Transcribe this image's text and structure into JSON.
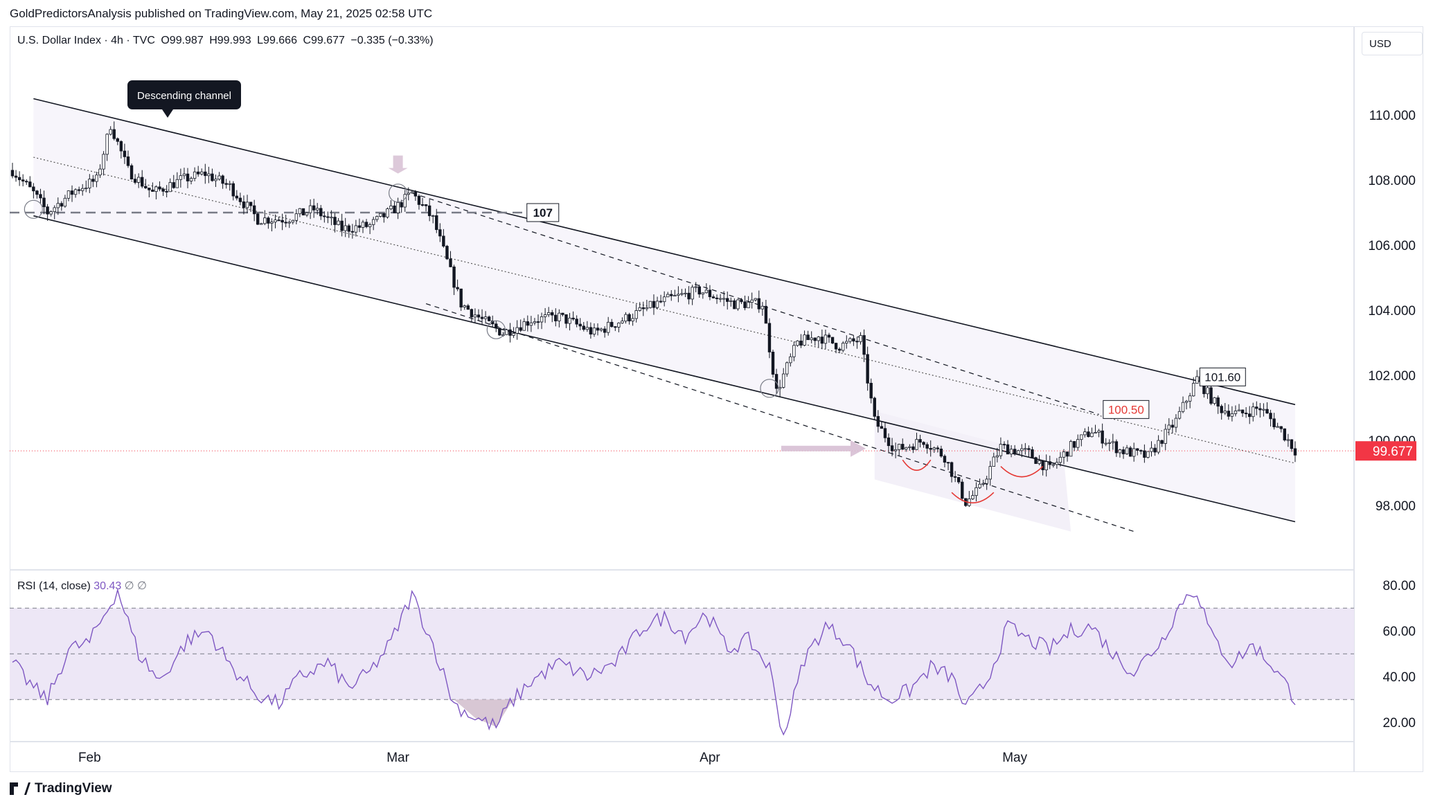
{
  "header": {
    "published_by": "GoldPredictorsAnalysis published on TradingView.com, May 21, 2025 02:58 UTC"
  },
  "legend": {
    "symbol": "U.S. Dollar Index · 4h · TVC",
    "open": "O99.987",
    "high": "H99.993",
    "low": "L99.666",
    "close": "C99.677",
    "change": "−0.335 (−0.33%)"
  },
  "currency_button": "USD",
  "rsi_legend": {
    "label": "RSI (14, close)",
    "value": "30.43",
    "extra1": "∅",
    "extra2": "∅"
  },
  "annotations": {
    "channel_callout": "Descending channel",
    "level_107": "107",
    "level_10160": "101.60",
    "level_10050": "100.50",
    "last_price": "99.677"
  },
  "footer": {
    "brand": "TradingView"
  },
  "colors": {
    "candle": "#131722",
    "rsi_line": "#7e57c2",
    "rsi_band": "#ede7f6",
    "price_line": "#f23645",
    "arrow": "#d7bfd4",
    "channel_fill": "#f3f0f8"
  },
  "chart_data": [
    {
      "type": "candlestick",
      "title": "U.S. Dollar Index · 4h · TVC",
      "x_tick_labels": [
        "Feb",
        "Mar",
        "Apr",
        "May"
      ],
      "ylim": [
        96.5,
        112.5
      ],
      "y_ticks": [
        "98.000",
        "100.000",
        "102.000",
        "104.000",
        "106.000",
        "108.000",
        "110.000"
      ],
      "close_path_waypoints": [
        {
          "t": 0,
          "y": 108.3
        },
        {
          "t": 6,
          "y": 107.6
        },
        {
          "t": 10,
          "y": 107.0
        },
        {
          "t": 18,
          "y": 107.7
        },
        {
          "t": 24,
          "y": 108.0
        },
        {
          "t": 28,
          "y": 109.7
        },
        {
          "t": 33,
          "y": 108.3
        },
        {
          "t": 40,
          "y": 107.6
        },
        {
          "t": 48,
          "y": 108.0
        },
        {
          "t": 55,
          "y": 108.2
        },
        {
          "t": 62,
          "y": 107.8
        },
        {
          "t": 70,
          "y": 106.8
        },
        {
          "t": 78,
          "y": 106.8
        },
        {
          "t": 86,
          "y": 107.1
        },
        {
          "t": 94,
          "y": 106.5
        },
        {
          "t": 102,
          "y": 106.6
        },
        {
          "t": 110,
          "y": 107.2
        },
        {
          "t": 114,
          "y": 107.6
        },
        {
          "t": 120,
          "y": 106.8
        },
        {
          "t": 128,
          "y": 104.2
        },
        {
          "t": 134,
          "y": 103.7
        },
        {
          "t": 140,
          "y": 103.3
        },
        {
          "t": 148,
          "y": 103.7
        },
        {
          "t": 156,
          "y": 103.8
        },
        {
          "t": 166,
          "y": 103.3
        },
        {
          "t": 176,
          "y": 103.8
        },
        {
          "t": 186,
          "y": 104.3
        },
        {
          "t": 196,
          "y": 104.6
        },
        {
          "t": 206,
          "y": 104.2
        },
        {
          "t": 214,
          "y": 104.2
        },
        {
          "t": 218,
          "y": 101.5
        },
        {
          "t": 224,
          "y": 103.0
        },
        {
          "t": 230,
          "y": 103.2
        },
        {
          "t": 236,
          "y": 102.9
        },
        {
          "t": 242,
          "y": 103.1
        },
        {
          "t": 246,
          "y": 100.6
        },
        {
          "t": 252,
          "y": 99.7
        },
        {
          "t": 260,
          "y": 100.0
        },
        {
          "t": 266,
          "y": 99.5
        },
        {
          "t": 272,
          "y": 98.1
        },
        {
          "t": 276,
          "y": 98.5
        },
        {
          "t": 282,
          "y": 99.8
        },
        {
          "t": 290,
          "y": 99.6
        },
        {
          "t": 296,
          "y": 99.1
        },
        {
          "t": 302,
          "y": 99.8
        },
        {
          "t": 308,
          "y": 100.3
        },
        {
          "t": 316,
          "y": 99.7
        },
        {
          "t": 324,
          "y": 99.5
        },
        {
          "t": 332,
          "y": 100.6
        },
        {
          "t": 338,
          "y": 101.9
        },
        {
          "t": 344,
          "y": 101.0
        },
        {
          "t": 350,
          "y": 100.8
        },
        {
          "t": 356,
          "y": 101.0
        },
        {
          "t": 362,
          "y": 100.3
        },
        {
          "t": 366,
          "y": 99.7
        }
      ]
    },
    {
      "type": "line",
      "title": "RSI (14, close)",
      "ylim": [
        8,
        84
      ],
      "y_ticks": [
        "20.00",
        "40.00",
        "60.00",
        "80.00"
      ],
      "band": [
        30,
        70
      ],
      "midline": 50,
      "rsi_waypoints": [
        {
          "t": 0,
          "y": 46
        },
        {
          "t": 6,
          "y": 35
        },
        {
          "t": 10,
          "y": 30
        },
        {
          "t": 16,
          "y": 52
        },
        {
          "t": 22,
          "y": 55
        },
        {
          "t": 30,
          "y": 78
        },
        {
          "t": 36,
          "y": 50
        },
        {
          "t": 42,
          "y": 38
        },
        {
          "t": 50,
          "y": 56
        },
        {
          "t": 56,
          "y": 60
        },
        {
          "t": 62,
          "y": 45
        },
        {
          "t": 70,
          "y": 32
        },
        {
          "t": 76,
          "y": 28
        },
        {
          "t": 82,
          "y": 40
        },
        {
          "t": 90,
          "y": 46
        },
        {
          "t": 96,
          "y": 35
        },
        {
          "t": 102,
          "y": 42
        },
        {
          "t": 108,
          "y": 55
        },
        {
          "t": 114,
          "y": 76
        },
        {
          "t": 120,
          "y": 54
        },
        {
          "t": 126,
          "y": 28
        },
        {
          "t": 132,
          "y": 22
        },
        {
          "t": 138,
          "y": 18
        },
        {
          "t": 142,
          "y": 28
        },
        {
          "t": 148,
          "y": 38
        },
        {
          "t": 156,
          "y": 46
        },
        {
          "t": 164,
          "y": 40
        },
        {
          "t": 172,
          "y": 46
        },
        {
          "t": 180,
          "y": 62
        },
        {
          "t": 186,
          "y": 66
        },
        {
          "t": 192,
          "y": 58
        },
        {
          "t": 198,
          "y": 68
        },
        {
          "t": 204,
          "y": 52
        },
        {
          "t": 210,
          "y": 56
        },
        {
          "t": 216,
          "y": 44
        },
        {
          "t": 220,
          "y": 14
        },
        {
          "t": 226,
          "y": 48
        },
        {
          "t": 232,
          "y": 62
        },
        {
          "t": 238,
          "y": 56
        },
        {
          "t": 244,
          "y": 38
        },
        {
          "t": 250,
          "y": 30
        },
        {
          "t": 256,
          "y": 34
        },
        {
          "t": 262,
          "y": 44
        },
        {
          "t": 268,
          "y": 40
        },
        {
          "t": 272,
          "y": 26
        },
        {
          "t": 278,
          "y": 38
        },
        {
          "t": 284,
          "y": 62
        },
        {
          "t": 290,
          "y": 56
        },
        {
          "t": 296,
          "y": 52
        },
        {
          "t": 302,
          "y": 60
        },
        {
          "t": 308,
          "y": 62
        },
        {
          "t": 314,
          "y": 50
        },
        {
          "t": 320,
          "y": 42
        },
        {
          "t": 328,
          "y": 56
        },
        {
          "t": 334,
          "y": 74
        },
        {
          "t": 338,
          "y": 78
        },
        {
          "t": 342,
          "y": 58
        },
        {
          "t": 348,
          "y": 46
        },
        {
          "t": 354,
          "y": 54
        },
        {
          "t": 360,
          "y": 44
        },
        {
          "t": 366,
          "y": 30.43
        }
      ]
    }
  ]
}
